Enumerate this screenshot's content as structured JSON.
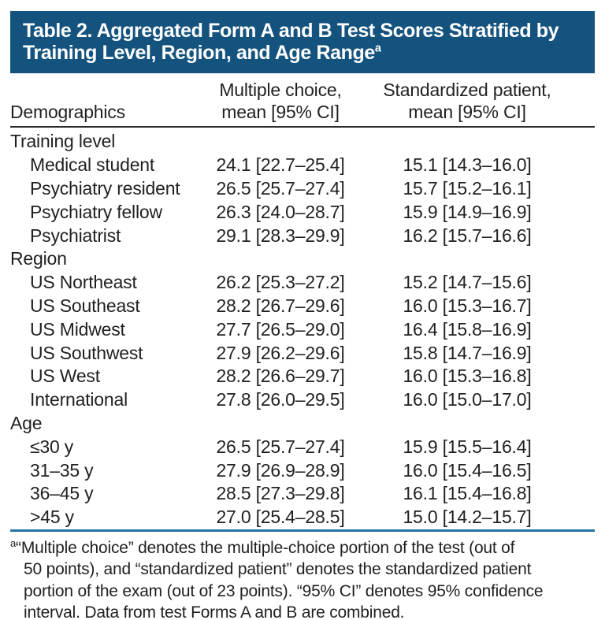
{
  "header": {
    "title_line1": "Table 2. Aggregated Form A and B Test Scores Stratified by",
    "title_line2": "Training Level, Region, and Age Range",
    "title_superscript": "a"
  },
  "columns": {
    "demographics": "Demographics",
    "col1_line1": "Multiple choice,",
    "col1_line2": "mean [95% CI]",
    "col2_line1": "Standardized patient,",
    "col2_line2": "mean [95% CI]"
  },
  "table": {
    "sections": [
      {
        "label": "Training level",
        "rows": [
          {
            "label": "Medical student",
            "mc": "24.1 [22.7–25.4]",
            "sp": "15.1 [14.3–16.0]"
          },
          {
            "label": "Psychiatry resident",
            "mc": "26.5 [25.7–27.4]",
            "sp": "15.7 [15.2–16.1]"
          },
          {
            "label": "Psychiatry fellow",
            "mc": "26.3 [24.0–28.7]",
            "sp": "15.9 [14.9–16.9]"
          },
          {
            "label": "Psychiatrist",
            "mc": "29.1 [28.3–29.9]",
            "sp": "16.2 [15.7–16.6]"
          }
        ]
      },
      {
        "label": "Region",
        "rows": [
          {
            "label": "US Northeast",
            "mc": "26.2 [25.3–27.2]",
            "sp": "15.2 [14.7–15.6]"
          },
          {
            "label": "US Southeast",
            "mc": "28.2 [26.7–29.6]",
            "sp": "16.0 [15.3–16.7]"
          },
          {
            "label": "US Midwest",
            "mc": "27.7 [26.5–29.0]",
            "sp": "16.4 [15.8–16.9]"
          },
          {
            "label": "US Southwest",
            "mc": "27.9 [26.2–29.6]",
            "sp": "15.8 [14.7–16.9]"
          },
          {
            "label": "US West",
            "mc": "28.2 [26.6–29.7]",
            "sp": "16.0 [15.3–16.8]"
          },
          {
            "label": "International",
            "mc": "27.8 [26.0–29.5]",
            "sp": "16.0 [15.0–17.0]"
          }
        ]
      },
      {
        "label": "Age",
        "rows": [
          {
            "label": "≤30 y",
            "mc": "26.5 [25.7–27.4]",
            "sp": "15.9 [15.5–16.4]"
          },
          {
            "label": "31–35 y",
            "mc": "27.9 [26.9–28.9]",
            "sp": "16.0 [15.4–16.5]"
          },
          {
            "label": "36–45 y",
            "mc": "28.5 [27.3–29.8]",
            "sp": "16.1 [15.4–16.8]"
          },
          {
            "label": ">45 y",
            "mc": "27.0 [25.4–28.5]",
            "sp": "15.0 [14.2–15.7]"
          }
        ]
      }
    ]
  },
  "footnote": {
    "superscript": "a",
    "lines": [
      "“Multiple choice” denotes the multiple-choice portion of the test (out of",
      "50 points), and “standardized patient” denotes the standardized patient",
      "portion of the exam (out of 23 points). “95% CI” denotes 95% confidence",
      "interval. Data from test Forms A and B are combined."
    ]
  },
  "colors": {
    "banner_background": "#15537f",
    "banner_text": "#ffffff",
    "body_text": "#231f20",
    "header_rule": "#2b2b2b",
    "blue_rule": "#2673a5"
  }
}
